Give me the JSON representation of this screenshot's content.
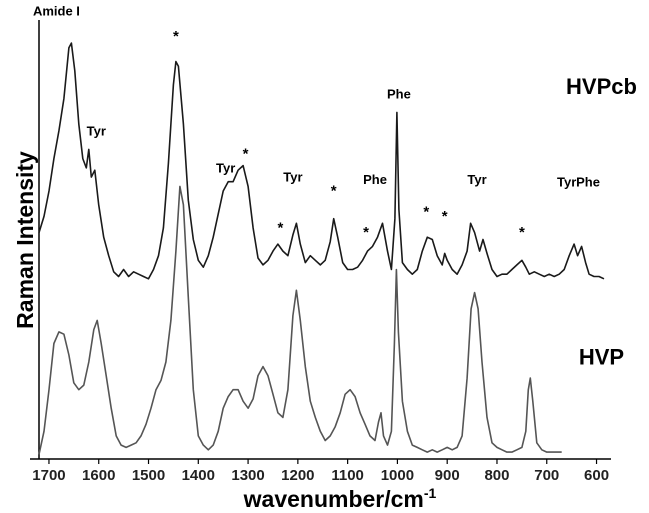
{
  "chart_data": {
    "type": "line",
    "xlabel": "wavenumber/cm",
    "xlabel_superscript": "-1",
    "ylabel": "Raman Intensity",
    "xlim": [
      1720,
      585
    ],
    "x_reversed": true,
    "ylim": [
      0,
      1.9
    ],
    "y_ticks_shown": false,
    "grid": false,
    "x_ticks": [
      1700,
      1600,
      1500,
      1400,
      1300,
      1200,
      1100,
      1000,
      900,
      800,
      700,
      600
    ],
    "series": [
      {
        "name": "HVPcb",
        "color": "#1a1a1a",
        "points": [
          [
            1720,
            0.98
          ],
          [
            1710,
            1.05
          ],
          [
            1700,
            1.16
          ],
          [
            1690,
            1.3
          ],
          [
            1680,
            1.42
          ],
          [
            1670,
            1.56
          ],
          [
            1660,
            1.78
          ],
          [
            1655,
            1.8
          ],
          [
            1648,
            1.68
          ],
          [
            1640,
            1.45
          ],
          [
            1632,
            1.3
          ],
          [
            1625,
            1.26
          ],
          [
            1620,
            1.34
          ],
          [
            1615,
            1.22
          ],
          [
            1608,
            1.25
          ],
          [
            1600,
            1.1
          ],
          [
            1590,
            0.96
          ],
          [
            1580,
            0.88
          ],
          [
            1570,
            0.81
          ],
          [
            1560,
            0.79
          ],
          [
            1550,
            0.82
          ],
          [
            1540,
            0.79
          ],
          [
            1530,
            0.81
          ],
          [
            1520,
            0.8
          ],
          [
            1510,
            0.79
          ],
          [
            1500,
            0.78
          ],
          [
            1490,
            0.82
          ],
          [
            1480,
            0.88
          ],
          [
            1470,
            1.0
          ],
          [
            1460,
            1.28
          ],
          [
            1450,
            1.62
          ],
          [
            1445,
            1.72
          ],
          [
            1440,
            1.7
          ],
          [
            1430,
            1.45
          ],
          [
            1420,
            1.12
          ],
          [
            1410,
            0.95
          ],
          [
            1400,
            0.86
          ],
          [
            1390,
            0.83
          ],
          [
            1380,
            0.88
          ],
          [
            1370,
            0.96
          ],
          [
            1360,
            1.06
          ],
          [
            1350,
            1.16
          ],
          [
            1340,
            1.2
          ],
          [
            1330,
            1.2
          ],
          [
            1320,
            1.25
          ],
          [
            1310,
            1.27
          ],
          [
            1300,
            1.18
          ],
          [
            1290,
            1.0
          ],
          [
            1280,
            0.87
          ],
          [
            1270,
            0.84
          ],
          [
            1260,
            0.86
          ],
          [
            1250,
            0.9
          ],
          [
            1240,
            0.93
          ],
          [
            1230,
            0.9
          ],
          [
            1220,
            0.88
          ],
          [
            1210,
            0.97
          ],
          [
            1203,
            1.02
          ],
          [
            1195,
            0.93
          ],
          [
            1185,
            0.85
          ],
          [
            1175,
            0.88
          ],
          [
            1165,
            0.86
          ],
          [
            1155,
            0.84
          ],
          [
            1145,
            0.86
          ],
          [
            1135,
            0.94
          ],
          [
            1128,
            1.04
          ],
          [
            1120,
            0.96
          ],
          [
            1110,
            0.85
          ],
          [
            1100,
            0.82
          ],
          [
            1090,
            0.82
          ],
          [
            1080,
            0.83
          ],
          [
            1070,
            0.86
          ],
          [
            1060,
            0.9
          ],
          [
            1050,
            0.92
          ],
          [
            1040,
            0.96
          ],
          [
            1030,
            1.02
          ],
          [
            1020,
            0.9
          ],
          [
            1012,
            0.82
          ],
          [
            1005,
            1.04
          ],
          [
            1001,
            1.5
          ],
          [
            997,
            1.08
          ],
          [
            990,
            0.85
          ],
          [
            980,
            0.82
          ],
          [
            970,
            0.8
          ],
          [
            960,
            0.82
          ],
          [
            950,
            0.9
          ],
          [
            940,
            0.96
          ],
          [
            930,
            0.95
          ],
          [
            920,
            0.88
          ],
          [
            910,
            0.84
          ],
          [
            905,
            0.89
          ],
          [
            900,
            0.86
          ],
          [
            890,
            0.82
          ],
          [
            880,
            0.8
          ],
          [
            870,
            0.84
          ],
          [
            860,
            0.9
          ],
          [
            853,
            1.02
          ],
          [
            845,
            0.98
          ],
          [
            835,
            0.9
          ],
          [
            828,
            0.95
          ],
          [
            820,
            0.89
          ],
          [
            810,
            0.82
          ],
          [
            800,
            0.79
          ],
          [
            790,
            0.8
          ],
          [
            780,
            0.8
          ],
          [
            770,
            0.82
          ],
          [
            760,
            0.84
          ],
          [
            750,
            0.86
          ],
          [
            742,
            0.83
          ],
          [
            735,
            0.8
          ],
          [
            725,
            0.81
          ],
          [
            715,
            0.8
          ],
          [
            705,
            0.79
          ],
          [
            695,
            0.8
          ],
          [
            685,
            0.79
          ],
          [
            675,
            0.8
          ],
          [
            665,
            0.82
          ],
          [
            655,
            0.88
          ],
          [
            645,
            0.93
          ],
          [
            638,
            0.88
          ],
          [
            630,
            0.92
          ],
          [
            622,
            0.85
          ],
          [
            615,
            0.8
          ],
          [
            605,
            0.79
          ],
          [
            595,
            0.79
          ],
          [
            585,
            0.78
          ]
        ]
      },
      {
        "name": "HVP",
        "color": "#555555",
        "points": [
          [
            1720,
            0.02
          ],
          [
            1710,
            0.12
          ],
          [
            1700,
            0.3
          ],
          [
            1690,
            0.5
          ],
          [
            1680,
            0.55
          ],
          [
            1670,
            0.54
          ],
          [
            1660,
            0.45
          ],
          [
            1650,
            0.33
          ],
          [
            1640,
            0.3
          ],
          [
            1630,
            0.32
          ],
          [
            1620,
            0.42
          ],
          [
            1610,
            0.56
          ],
          [
            1603,
            0.6
          ],
          [
            1595,
            0.5
          ],
          [
            1585,
            0.36
          ],
          [
            1575,
            0.22
          ],
          [
            1565,
            0.1
          ],
          [
            1555,
            0.06
          ],
          [
            1545,
            0.05
          ],
          [
            1535,
            0.06
          ],
          [
            1525,
            0.07
          ],
          [
            1515,
            0.1
          ],
          [
            1505,
            0.15
          ],
          [
            1495,
            0.22
          ],
          [
            1485,
            0.3
          ],
          [
            1475,
            0.34
          ],
          [
            1465,
            0.42
          ],
          [
            1455,
            0.6
          ],
          [
            1445,
            0.9
          ],
          [
            1437,
            1.18
          ],
          [
            1430,
            1.1
          ],
          [
            1420,
            0.7
          ],
          [
            1410,
            0.3
          ],
          [
            1400,
            0.1
          ],
          [
            1390,
            0.06
          ],
          [
            1380,
            0.04
          ],
          [
            1370,
            0.06
          ],
          [
            1360,
            0.12
          ],
          [
            1350,
            0.22
          ],
          [
            1340,
            0.27
          ],
          [
            1330,
            0.3
          ],
          [
            1320,
            0.3
          ],
          [
            1310,
            0.25
          ],
          [
            1300,
            0.22
          ],
          [
            1290,
            0.26
          ],
          [
            1280,
            0.36
          ],
          [
            1270,
            0.4
          ],
          [
            1260,
            0.36
          ],
          [
            1250,
            0.28
          ],
          [
            1240,
            0.2
          ],
          [
            1230,
            0.18
          ],
          [
            1220,
            0.3
          ],
          [
            1210,
            0.62
          ],
          [
            1203,
            0.73
          ],
          [
            1195,
            0.6
          ],
          [
            1185,
            0.4
          ],
          [
            1175,
            0.25
          ],
          [
            1165,
            0.18
          ],
          [
            1155,
            0.12
          ],
          [
            1145,
            0.08
          ],
          [
            1135,
            0.1
          ],
          [
            1125,
            0.14
          ],
          [
            1115,
            0.2
          ],
          [
            1105,
            0.28
          ],
          [
            1095,
            0.3
          ],
          [
            1085,
            0.27
          ],
          [
            1075,
            0.2
          ],
          [
            1065,
            0.15
          ],
          [
            1055,
            0.1
          ],
          [
            1045,
            0.08
          ],
          [
            1038,
            0.16
          ],
          [
            1033,
            0.2
          ],
          [
            1028,
            0.1
          ],
          [
            1020,
            0.06
          ],
          [
            1012,
            0.12
          ],
          [
            1006,
            0.5
          ],
          [
            1002,
            0.82
          ],
          [
            998,
            0.55
          ],
          [
            990,
            0.25
          ],
          [
            980,
            0.12
          ],
          [
            970,
            0.06
          ],
          [
            960,
            0.05
          ],
          [
            950,
            0.04
          ],
          [
            940,
            0.03
          ],
          [
            930,
            0.04
          ],
          [
            920,
            0.03
          ],
          [
            910,
            0.04
          ],
          [
            900,
            0.05
          ],
          [
            890,
            0.04
          ],
          [
            880,
            0.05
          ],
          [
            870,
            0.1
          ],
          [
            860,
            0.35
          ],
          [
            852,
            0.65
          ],
          [
            845,
            0.72
          ],
          [
            838,
            0.65
          ],
          [
            830,
            0.42
          ],
          [
            820,
            0.18
          ],
          [
            810,
            0.07
          ],
          [
            800,
            0.05
          ],
          [
            790,
            0.04
          ],
          [
            780,
            0.03
          ],
          [
            770,
            0.03
          ],
          [
            760,
            0.04
          ],
          [
            750,
            0.05
          ],
          [
            742,
            0.12
          ],
          [
            737,
            0.3
          ],
          [
            733,
            0.35
          ],
          [
            728,
            0.25
          ],
          [
            720,
            0.07
          ],
          [
            710,
            0.04
          ],
          [
            700,
            0.03
          ],
          [
            690,
            0.03
          ],
          [
            680,
            0.03
          ],
          [
            670,
            0.03
          ]
        ]
      }
    ],
    "annotations": [
      {
        "text": "Amide I",
        "x": 1685,
        "y": 1.92
      },
      {
        "text": "*",
        "x": 1445,
        "y": 1.81
      },
      {
        "text": "Tyr",
        "x": 1605,
        "y": 1.4
      },
      {
        "text": "Tyr",
        "x": 1345,
        "y": 1.24
      },
      {
        "text": "*",
        "x": 1305,
        "y": 1.3
      },
      {
        "text": "Tyr",
        "x": 1210,
        "y": 1.2
      },
      {
        "text": "*",
        "x": 1235,
        "y": 0.98
      },
      {
        "text": "*",
        "x": 1128,
        "y": 1.14
      },
      {
        "text": "*",
        "x": 1063,
        "y": 0.96
      },
      {
        "text": "Phe",
        "x": 1045,
        "y": 1.19
      },
      {
        "text": "Phe",
        "x": 997,
        "y": 1.56
      },
      {
        "text": "*",
        "x": 942,
        "y": 1.05
      },
      {
        "text": "*",
        "x": 905,
        "y": 1.03
      },
      {
        "text": "Tyr",
        "x": 840,
        "y": 1.19
      },
      {
        "text": "*",
        "x": 750,
        "y": 0.96
      },
      {
        "text": "Tyr",
        "x": 660,
        "y": 1.18
      },
      {
        "text": "Phe",
        "x": 617,
        "y": 1.18
      }
    ],
    "series_labels": [
      {
        "text": "HVPcb",
        "x": 590,
        "y": 1.58
      },
      {
        "text": "HVP",
        "x": 590,
        "y": 0.41
      }
    ]
  }
}
